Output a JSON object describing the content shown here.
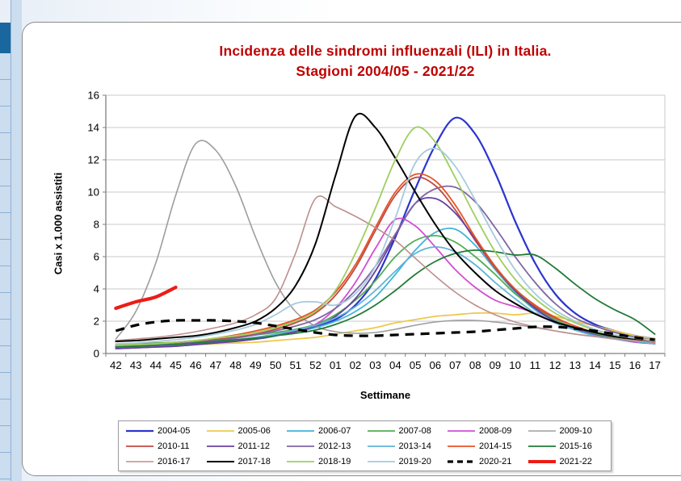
{
  "title": {
    "line1": "Incidenza delle sindromi influenzali (ILI) in Italia.",
    "line2": "Stagioni 2004/05 - 2021/22",
    "color": "#C00000"
  },
  "axes": {
    "y_title": "Casi x 1.000 assistiti",
    "x_title": "Settimane"
  },
  "chart_data": {
    "type": "line",
    "title": "Incidenza delle sindromi influenzali (ILI) in Italia. Stagioni 2004/05 - 2021/22",
    "xlabel": "Settimane",
    "ylabel": "Casi x 1.000 assistiti",
    "ylim": [
      0,
      16
    ],
    "y_ticks": [
      0,
      2,
      4,
      6,
      8,
      10,
      12,
      14,
      16
    ],
    "grid": "horizontal",
    "legend_position": "bottom",
    "x_categories": [
      "42",
      "43",
      "44",
      "45",
      "46",
      "47",
      "48",
      "49",
      "50",
      "51",
      "52",
      "01",
      "02",
      "03",
      "04",
      "05",
      "06",
      "07",
      "08",
      "09",
      "10",
      "11",
      "12",
      "13",
      "14",
      "15",
      "16",
      "17"
    ],
    "series": [
      {
        "name": "2004-05",
        "color": "#2B35CE",
        "width": 2.2,
        "dash": null,
        "values": [
          0.4,
          0.45,
          0.5,
          0.55,
          0.6,
          0.7,
          0.8,
          0.9,
          1.1,
          1.4,
          1.7,
          2.1,
          3.0,
          4.6,
          7.2,
          10.2,
          12.9,
          14.6,
          13.6,
          11.2,
          8.2,
          5.6,
          3.7,
          2.5,
          1.8,
          1.4,
          1.1,
          0.9
        ]
      },
      {
        "name": "2005-06",
        "color": "#EDC84D",
        "width": 1.8,
        "dash": null,
        "values": [
          0.35,
          0.4,
          0.45,
          0.5,
          0.55,
          0.6,
          0.65,
          0.7,
          0.8,
          0.9,
          1.0,
          1.2,
          1.4,
          1.6,
          1.9,
          2.1,
          2.3,
          2.4,
          2.5,
          2.5,
          2.4,
          2.5,
          2.3,
          2.0,
          1.7,
          1.4,
          1.1,
          0.9
        ]
      },
      {
        "name": "2006-07",
        "color": "#41B4DA",
        "width": 1.8,
        "dash": null,
        "values": [
          0.45,
          0.5,
          0.55,
          0.6,
          0.65,
          0.75,
          0.85,
          1.0,
          1.15,
          1.35,
          1.6,
          2.0,
          2.6,
          3.5,
          4.9,
          6.4,
          7.5,
          7.7,
          6.7,
          5.2,
          3.8,
          2.7,
          2.0,
          1.5,
          1.2,
          1.0,
          0.85,
          0.7
        ]
      },
      {
        "name": "2007-08",
        "color": "#4FAE52",
        "width": 1.8,
        "dash": null,
        "values": [
          0.55,
          0.6,
          0.65,
          0.7,
          0.8,
          0.9,
          1.0,
          1.15,
          1.3,
          1.5,
          1.8,
          2.4,
          3.3,
          4.5,
          6.0,
          7.0,
          7.3,
          6.9,
          6.0,
          4.9,
          3.7,
          2.8,
          2.1,
          1.6,
          1.25,
          1.0,
          0.85,
          0.7
        ]
      },
      {
        "name": "2008-09",
        "color": "#D24ED2",
        "width": 1.8,
        "dash": null,
        "values": [
          0.3,
          0.35,
          0.4,
          0.45,
          0.55,
          0.65,
          0.75,
          0.9,
          1.1,
          1.4,
          1.8,
          2.8,
          4.4,
          6.5,
          8.3,
          7.9,
          6.6,
          5.2,
          4.1,
          3.3,
          2.9,
          2.5,
          1.9,
          1.5,
          1.15,
          0.9,
          0.7,
          0.6
        ]
      },
      {
        "name": "2009-10",
        "color": "#9D9D9D",
        "width": 1.6,
        "dash": null,
        "values": [
          0.9,
          2.6,
          5.6,
          9.8,
          13.0,
          12.6,
          10.4,
          7.2,
          4.4,
          2.6,
          1.7,
          1.35,
          1.25,
          1.3,
          1.5,
          1.75,
          1.95,
          2.05,
          2.05,
          1.95,
          1.8,
          1.6,
          1.4,
          1.2,
          1.05,
          0.9,
          0.8,
          0.7
        ]
      },
      {
        "name": "2010-11",
        "color": "#BE4A43",
        "width": 1.8,
        "dash": null,
        "values": [
          0.4,
          0.45,
          0.5,
          0.6,
          0.7,
          0.85,
          1.0,
          1.2,
          1.5,
          1.9,
          2.5,
          3.6,
          5.3,
          7.6,
          9.8,
          10.9,
          10.4,
          8.9,
          7.0,
          5.3,
          3.9,
          2.9,
          2.2,
          1.7,
          1.3,
          1.05,
          0.85,
          0.7
        ]
      },
      {
        "name": "2011-12",
        "color": "#6640A3",
        "width": 1.8,
        "dash": null,
        "values": [
          0.3,
          0.35,
          0.4,
          0.45,
          0.55,
          0.65,
          0.75,
          0.9,
          1.1,
          1.35,
          1.7,
          2.3,
          3.4,
          5.1,
          7.3,
          9.3,
          9.6,
          8.7,
          7.1,
          5.4,
          3.9,
          2.8,
          2.0,
          1.5,
          1.15,
          0.9,
          0.75,
          0.6
        ]
      },
      {
        "name": "2012-13",
        "color": "#7F66A5",
        "width": 1.8,
        "dash": null,
        "values": [
          0.4,
          0.45,
          0.5,
          0.6,
          0.7,
          0.8,
          0.95,
          1.15,
          1.4,
          1.7,
          2.1,
          2.8,
          3.9,
          5.4,
          7.4,
          9.3,
          10.2,
          10.3,
          9.4,
          7.8,
          6.0,
          4.4,
          3.1,
          2.2,
          1.7,
          1.3,
          1.0,
          0.8
        ]
      },
      {
        "name": "2013-14",
        "color": "#5FB4D6",
        "width": 1.8,
        "dash": null,
        "values": [
          0.4,
          0.45,
          0.5,
          0.55,
          0.65,
          0.75,
          0.85,
          1.0,
          1.2,
          1.45,
          1.75,
          2.2,
          2.9,
          3.9,
          5.1,
          6.2,
          6.6,
          6.3,
          5.5,
          4.4,
          3.4,
          2.5,
          1.9,
          1.45,
          1.1,
          0.9,
          0.75,
          0.6
        ]
      },
      {
        "name": "2014-15",
        "color": "#E65425",
        "width": 1.8,
        "dash": null,
        "values": [
          0.5,
          0.55,
          0.6,
          0.7,
          0.8,
          0.95,
          1.15,
          1.4,
          1.7,
          2.1,
          2.7,
          3.8,
          5.5,
          7.8,
          10.0,
          11.1,
          10.7,
          9.2,
          7.2,
          5.4,
          4.0,
          3.0,
          2.25,
          1.7,
          1.3,
          1.05,
          0.85,
          0.7
        ]
      },
      {
        "name": "2015-16",
        "color": "#217A38",
        "width": 1.8,
        "dash": null,
        "values": [
          0.4,
          0.45,
          0.5,
          0.55,
          0.65,
          0.75,
          0.85,
          0.95,
          1.1,
          1.25,
          1.45,
          1.8,
          2.3,
          3.0,
          3.9,
          4.9,
          5.7,
          6.2,
          6.4,
          6.3,
          6.1,
          6.1,
          5.3,
          4.3,
          3.4,
          2.7,
          2.1,
          1.2
        ]
      },
      {
        "name": "2016-17",
        "color": "#BD8F8D",
        "width": 1.6,
        "dash": null,
        "values": [
          0.8,
          0.9,
          1.0,
          1.15,
          1.35,
          1.6,
          1.9,
          2.4,
          3.4,
          6.2,
          9.6,
          9.1,
          8.5,
          7.8,
          7.0,
          5.9,
          4.8,
          3.8,
          3.0,
          2.4,
          1.95,
          1.65,
          1.4,
          1.2,
          1.05,
          0.9,
          0.8,
          0.7
        ]
      },
      {
        "name": "2017-18",
        "color": "#000000",
        "width": 2.0,
        "dash": null,
        "values": [
          0.75,
          0.8,
          0.9,
          1.0,
          1.1,
          1.3,
          1.6,
          2.0,
          2.8,
          4.2,
          6.8,
          11.0,
          14.7,
          14.0,
          12.1,
          10.0,
          8.0,
          6.3,
          5.0,
          3.9,
          3.1,
          2.45,
          1.95,
          1.6,
          1.3,
          1.05,
          0.9,
          0.8
        ]
      },
      {
        "name": "2018-19",
        "color": "#9ECE60",
        "width": 1.8,
        "dash": null,
        "values": [
          0.5,
          0.55,
          0.6,
          0.7,
          0.8,
          0.95,
          1.1,
          1.3,
          1.6,
          2.0,
          2.6,
          3.9,
          6.2,
          9.0,
          12.0,
          14.0,
          13.1,
          10.9,
          8.5,
          6.3,
          4.6,
          3.4,
          2.5,
          1.9,
          1.45,
          1.15,
          0.95,
          0.8
        ]
      },
      {
        "name": "2019-20",
        "color": "#A6CADD",
        "width": 1.8,
        "dash": null,
        "values": [
          0.6,
          0.65,
          0.75,
          0.85,
          1.0,
          1.2,
          1.45,
          1.8,
          2.4,
          3.1,
          3.2,
          3.0,
          3.7,
          5.4,
          8.4,
          11.8,
          12.7,
          11.6,
          9.5,
          7.2,
          5.2,
          3.7,
          2.7,
          2.0,
          1.5,
          1.15,
          0.95,
          0.8
        ]
      },
      {
        "name": "2020-21",
        "color": "#000000",
        "width": 3.2,
        "dash": "11 8",
        "values": [
          1.4,
          1.75,
          1.95,
          2.05,
          2.05,
          2.05,
          2.0,
          1.9,
          1.7,
          1.5,
          1.3,
          1.15,
          1.1,
          1.1,
          1.15,
          1.2,
          1.25,
          1.3,
          1.35,
          1.45,
          1.55,
          1.65,
          1.65,
          1.55,
          1.4,
          1.2,
          1.0,
          0.85
        ]
      },
      {
        "name": "2021-22",
        "color": "#ED1C16",
        "width": 4.2,
        "dash": null,
        "values": [
          2.8,
          3.2,
          3.5,
          4.1
        ]
      }
    ]
  }
}
